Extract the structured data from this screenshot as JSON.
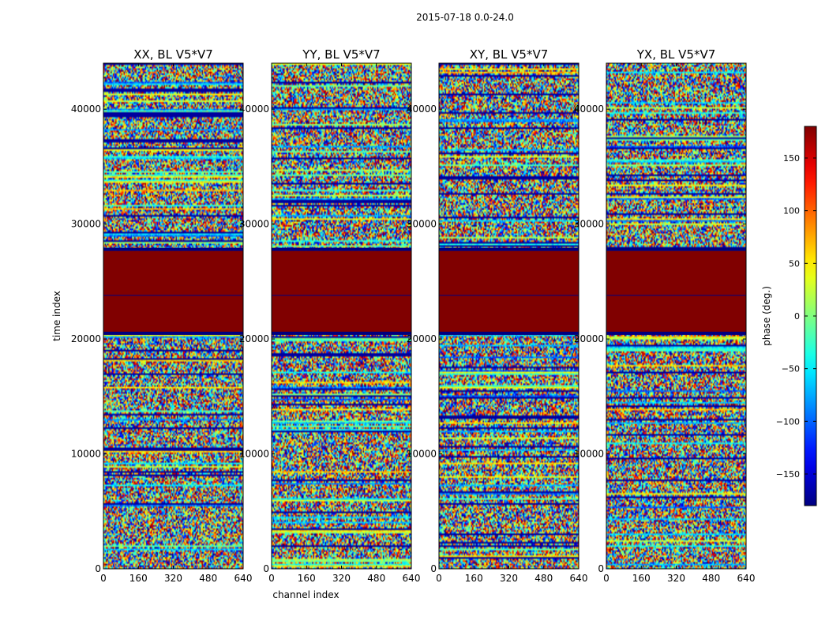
{
  "figure": {
    "suptitle": "2015-07-18 0.0-24.0"
  },
  "chart_data": [
    {
      "type": "heatmap",
      "title": "XX, BL V5*V7",
      "xlabel": "",
      "ylabel": "time index",
      "xlim": [
        0,
        640
      ],
      "ylim": [
        0,
        44000
      ],
      "xticks": [
        0,
        160,
        320,
        480,
        640
      ],
      "yticks": [
        0,
        10000,
        20000,
        30000,
        40000
      ],
      "flagged_band": [
        20500,
        27800
      ],
      "flagged_value": 180,
      "band_breaks": [
        23800
      ]
    },
    {
      "type": "heatmap",
      "title": "YY, BL V5*V7",
      "xlabel": "channel index",
      "ylabel": "",
      "xlim": [
        0,
        640
      ],
      "ylim": [
        0,
        44000
      ],
      "xticks": [
        0,
        160,
        320,
        480,
        640
      ],
      "yticks": [
        0,
        10000,
        20000,
        30000,
        40000
      ],
      "flagged_band": [
        20500,
        27800
      ],
      "flagged_value": 180,
      "band_breaks": [
        23800
      ]
    },
    {
      "type": "heatmap",
      "title": "XY, BL V5*V7",
      "xlabel": "",
      "ylabel": "",
      "xlim": [
        0,
        640
      ],
      "ylim": [
        0,
        44000
      ],
      "xticks": [
        0,
        160,
        320,
        480,
        640
      ],
      "yticks": [
        0,
        10000,
        20000,
        30000,
        40000
      ],
      "flagged_band": [
        20500,
        27800
      ],
      "flagged_value": 180,
      "band_breaks": [
        23800
      ]
    },
    {
      "type": "heatmap",
      "title": "YX, BL V5*V7",
      "xlabel": "",
      "ylabel": "",
      "xlim": [
        0,
        640
      ],
      "ylim": [
        0,
        44000
      ],
      "xticks": [
        0,
        160,
        320,
        480,
        640
      ],
      "yticks": [
        0,
        10000,
        20000,
        30000,
        40000
      ],
      "flagged_band": [
        20500,
        27800
      ],
      "flagged_value": 180,
      "band_breaks": [
        23800
      ]
    }
  ],
  "colorbar": {
    "label": "phase (deg.)",
    "range": [
      -180,
      180
    ],
    "ticks": [
      -150,
      -100,
      -50,
      0,
      50,
      100,
      150
    ],
    "tick_labels": [
      "−150",
      "−100",
      "−50",
      "0",
      "50",
      "100",
      "150"
    ],
    "colormap": "jet"
  }
}
